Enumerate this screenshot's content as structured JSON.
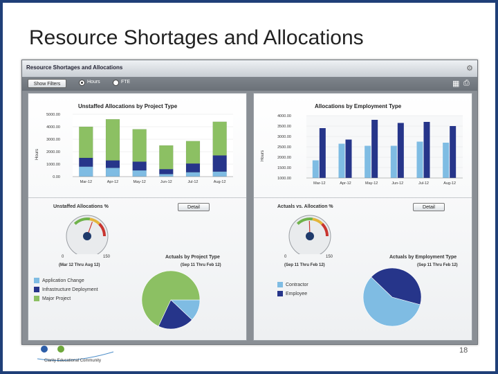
{
  "slide": {
    "title": "Resource Shortages and Allocations",
    "number": "18",
    "footer_org": "Clarity Educational Community"
  },
  "app": {
    "title": "Resource Shortages and Allocations",
    "show_filters": "Show Filters",
    "radio_hours": "Hours",
    "radio_fte": "FTE",
    "icon_gear": "gear-icon",
    "icon_grid": "grid-icon",
    "icon_print": "print-icon"
  },
  "left": {
    "chart_title": "Unstaffed Allocations by Project Type",
    "ylabel": "Hours",
    "gauge_title": "Unstaffed Allocations %",
    "detail": "Detail",
    "gauge_min": "0",
    "gauge_max": "150",
    "gauge_value": "86",
    "gauge_period": "(Mar 12 Thru Aug 12)",
    "pie_title": "Actuals by Project Type",
    "pie_period": "(Sep 11 Thru Feb 12)",
    "legend": [
      "Application Change",
      "Infrastructure Deployment",
      "Major Project"
    ]
  },
  "right": {
    "chart_title": "Allocations by Employment Type",
    "ylabel": "Hours",
    "gauge_title": "Actuals vs. Allocation %",
    "detail": "Detail",
    "gauge_min": "0",
    "gauge_max": "150",
    "gauge_value": "74",
    "gauge_period": "(Sep 11 Thru Feb 12)",
    "pie_title": "Actuals by Employment Type",
    "pie_period": "(Sep 11 Thru Feb 12)",
    "legend": [
      "Contractor",
      "Employee"
    ]
  },
  "colors": {
    "light_blue": "#7fbce3",
    "dark_blue": "#26358a",
    "green": "#8cc063"
  },
  "chart_data": [
    {
      "type": "bar",
      "stacked": true,
      "title": "Unstaffed Allocations by Project Type",
      "ylabel": "Hours",
      "ylim": [
        0,
        5000
      ],
      "yticks": [
        "0.00",
        "1000.00",
        "2000.00",
        "3000.00",
        "4000.00",
        "5000.00"
      ],
      "categories": [
        "Mar-12",
        "Apr-12",
        "May-12",
        "Jun-12",
        "Jul-12",
        "Aug-12"
      ],
      "series": [
        {
          "name": "Application Change",
          "values": [
            800,
            700,
            500,
            200,
            350,
            400
          ]
        },
        {
          "name": "Infrastructure Deployment",
          "values": [
            700,
            600,
            700,
            400,
            700,
            1300
          ]
        },
        {
          "name": "Major Project",
          "values": [
            2500,
            3300,
            2600,
            1900,
            1800,
            2700
          ]
        }
      ]
    },
    {
      "type": "bar",
      "title": "Allocations by Employment Type",
      "ylabel": "Hours",
      "ylim": [
        1000,
        4000
      ],
      "yticks": [
        "1000.00",
        "1500.00",
        "2000.00",
        "2500.00",
        "3000.00",
        "3500.00",
        "4000.00"
      ],
      "categories": [
        "Mar-12",
        "Apr-12",
        "May-12",
        "Jun-12",
        "Jul-12",
        "Aug-12"
      ],
      "series": [
        {
          "name": "Contractor",
          "values": [
            1850,
            2650,
            2550,
            2550,
            2750,
            2700
          ]
        },
        {
          "name": "Employee",
          "values": [
            3400,
            2850,
            3800,
            3650,
            3700,
            3500
          ]
        }
      ]
    },
    {
      "type": "pie",
      "title": "Actuals by Project Type",
      "labels": [
        "Application Change",
        "Infrastructure Deployment",
        "Major Project"
      ],
      "values": [
        12,
        20,
        68
      ]
    },
    {
      "type": "pie",
      "title": "Actuals by Employment Type",
      "labels": [
        "Contractor",
        "Employee"
      ],
      "values": [
        58,
        42
      ]
    }
  ]
}
